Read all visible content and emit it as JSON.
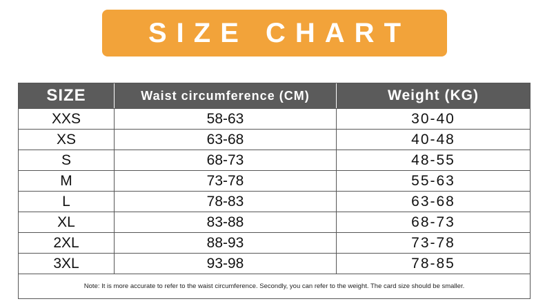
{
  "title": "SIZE CHART",
  "table": {
    "headers": [
      "SIZE",
      "Waist circumference (CM)",
      "Weight (KG)"
    ],
    "rows": [
      [
        "XXS",
        "58-63",
        "30-40"
      ],
      [
        "XS",
        "63-68",
        "40-48"
      ],
      [
        "S",
        "68-73",
        "48-55"
      ],
      [
        "M",
        "73-78",
        "55-63"
      ],
      [
        "L",
        "78-83",
        "63-68"
      ],
      [
        "XL",
        "83-88",
        "68-73"
      ],
      [
        "2XL",
        "88-93",
        "73-78"
      ],
      [
        "3XL",
        "93-98",
        "78-85"
      ]
    ],
    "note": "Note: It is more accurate to refer to the waist circumference. Secondly, you can refer to the weight. The card size should be smaller."
  }
}
